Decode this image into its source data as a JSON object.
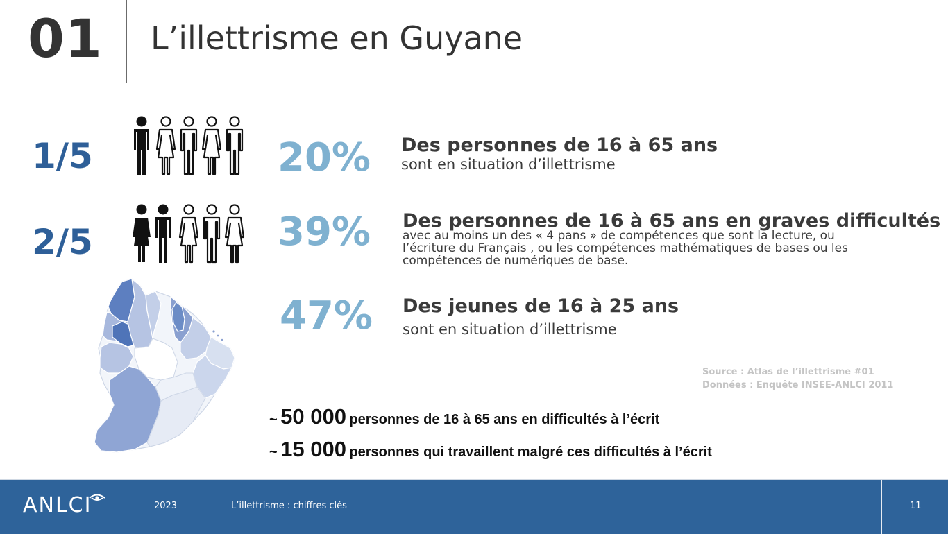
{
  "header": {
    "section_number": "01",
    "title": "L’illettrisme en Guyane"
  },
  "stats": [
    {
      "fraction": "1/5",
      "people_total": 5,
      "people_highlighted": 1,
      "percent": "20%",
      "title": "Des personnes de 16 à 65 ans",
      "subtitle": "sont en situation d’illettrisme"
    },
    {
      "fraction": "2/5",
      "people_total": 5,
      "people_highlighted": 2,
      "percent": "39%",
      "title": "Des personnes de 16 à 65 ans en graves difficultés",
      "subtitle": "avec au moins  un des « 4 pans » de compétences que sont la lecture, ou l’écriture du Français , ou les compétences mathématiques de bases ou les compétences de numériques de base."
    },
    {
      "percent": "47%",
      "title": "Des jeunes de 16 à 25 ans",
      "subtitle": "sont en situation d’illettrisme"
    }
  ],
  "source": {
    "line1": "Source : Atlas de l’illettrisme #01",
    "line2": "Données : Enquête INSEE-ANLCI 2011"
  },
  "counts": [
    {
      "tilde": "~",
      "value": "50 000",
      "text": "personnes de 16 à 65 ans en difficultés à l’écrit"
    },
    {
      "tilde": "~",
      "value": "15 000",
      "text": "personnes qui travaillent malgré ces difficultés à l’écrit"
    }
  ],
  "footer": {
    "logo": "ANLCI",
    "year": "2023",
    "title": "L’illettrisme : chiffres clés",
    "page_number": "11"
  },
  "colors": {
    "fraction_blue": "#2e5f98",
    "percent_light_blue": "#7fb1d0",
    "footer_blue": "#2e639a",
    "map_dark": "#5d7fc0",
    "map_mid": "#94a9d6",
    "map_light": "#dfe6f3"
  }
}
